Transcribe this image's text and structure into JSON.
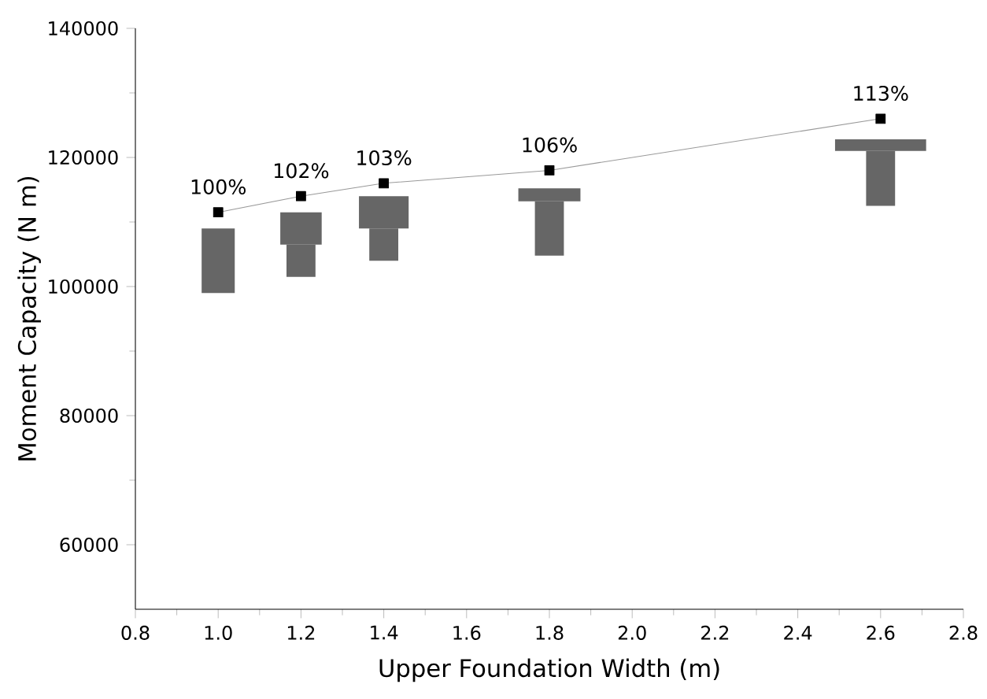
{
  "chart_data": {
    "type": "line",
    "xlabel": "Upper Foundation Width (m)",
    "ylabel": "Moment Capacity (N m)",
    "x": [
      1.0,
      1.2,
      1.4,
      1.8,
      2.6
    ],
    "series": [
      {
        "color": "#000000",
        "values": [
          111500,
          114000,
          116000,
          118000,
          126000
        ]
      }
    ],
    "annotations": [
      {
        "text": "100%",
        "x": 1.0,
        "y": 111500
      },
      {
        "text": "102%",
        "x": 1.2,
        "y": 114000
      },
      {
        "text": "103%",
        "x": 1.4,
        "y": 116000
      },
      {
        "text": "106%",
        "x": 1.8,
        "y": 118000
      },
      {
        "text": "113%",
        "x": 2.6,
        "y": 126000
      }
    ],
    "xlim": [
      0.8,
      2.8
    ],
    "xticks": [
      {
        "value": 0.8,
        "label": "0.8"
      },
      {
        "value": 1.0,
        "label": "1.0"
      },
      {
        "value": 1.2,
        "label": "1.2"
      },
      {
        "value": 1.4,
        "label": "1.4"
      },
      {
        "value": 1.6,
        "label": "1.6"
      },
      {
        "value": 1.8,
        "label": "1.8"
      },
      {
        "value": 2.0,
        "label": "2.0"
      },
      {
        "value": 2.2,
        "label": "2.2"
      },
      {
        "value": 2.4,
        "label": "2.4"
      },
      {
        "value": 2.6,
        "label": "2.6"
      },
      {
        "value": 2.8,
        "label": "2.8"
      }
    ],
    "ylim": [
      50000,
      140000
    ],
    "yticks": [
      60000,
      80000,
      100000,
      120000,
      140000
    ],
    "grid": false,
    "legend": false,
    "marker": "square",
    "line_style": "solid"
  }
}
